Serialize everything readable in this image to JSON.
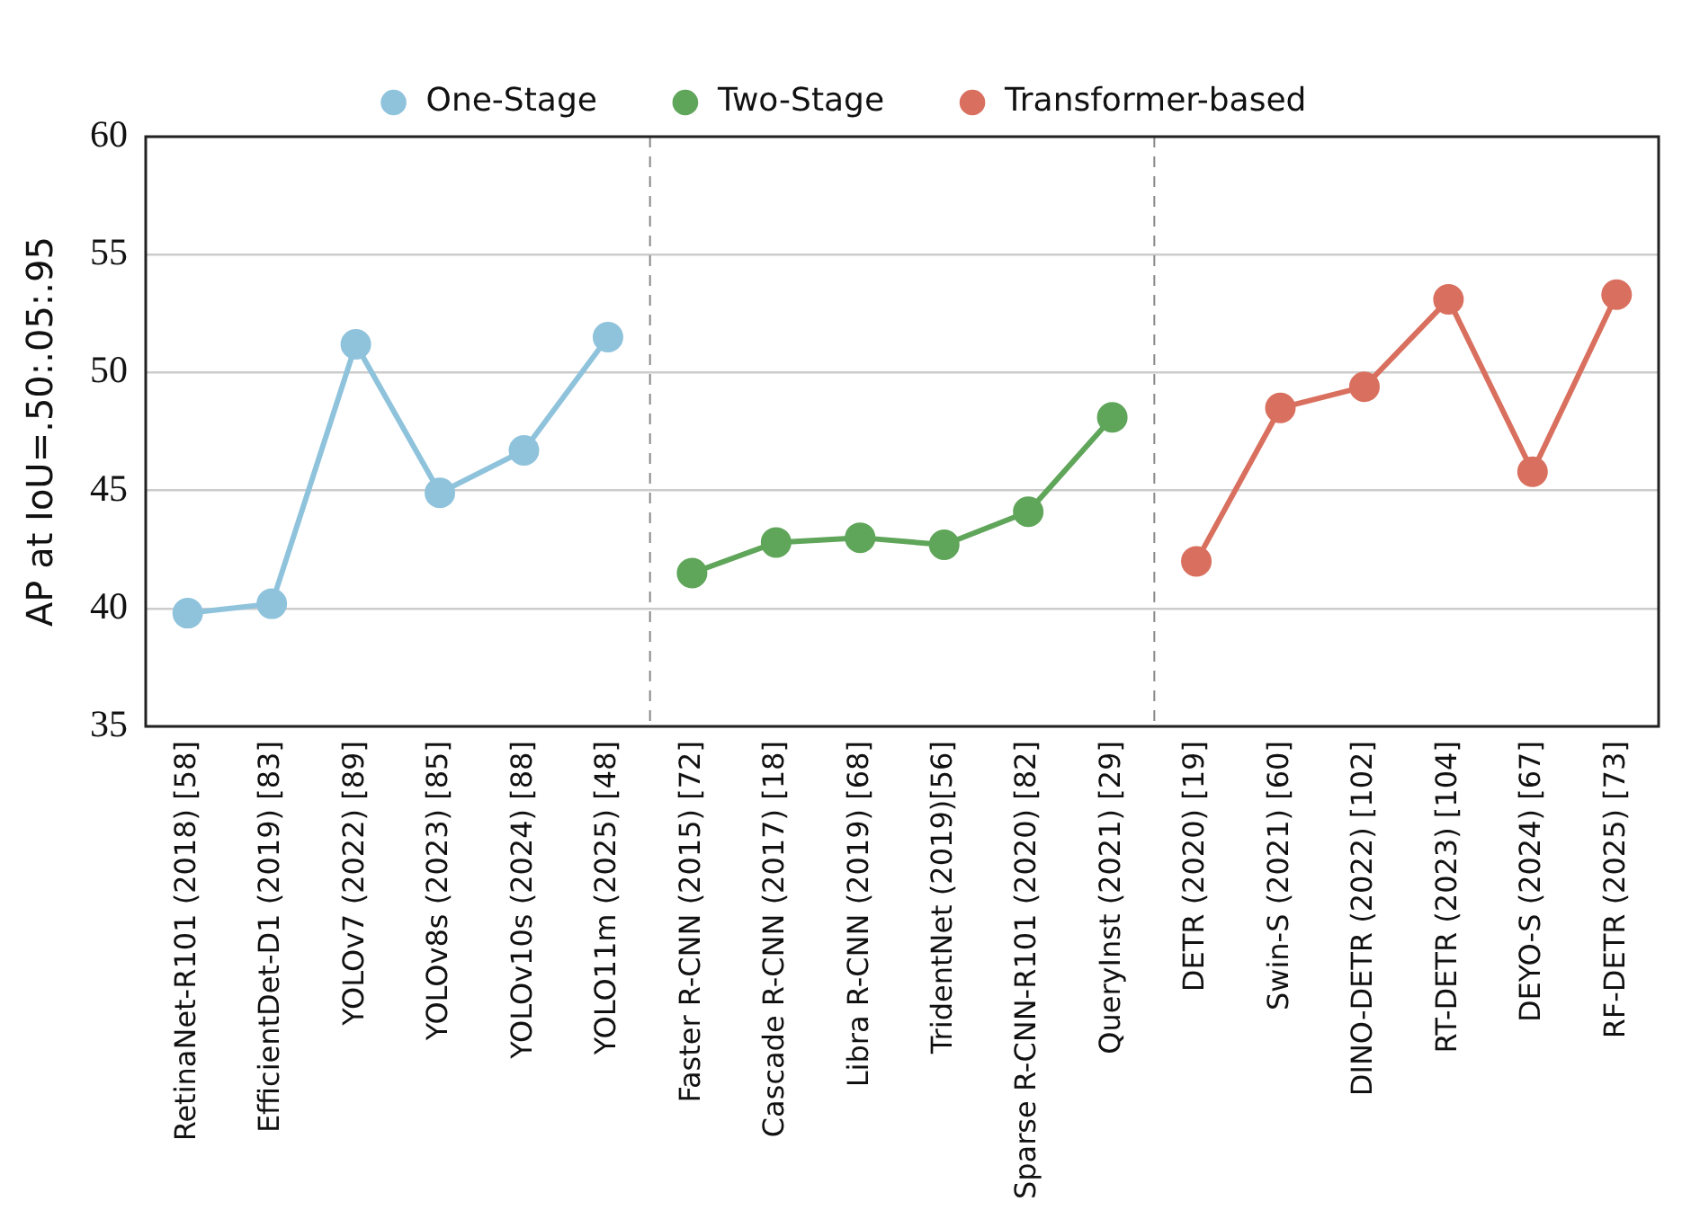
{
  "chart_data": {
    "type": "line",
    "ylabel": "AP at IoU=.50:.05:.95",
    "categories": [
      "RetinaNet-R101 (2018) [58]",
      "EfficientDet-D1 (2019) [83]",
      "YOLOv7 (2022) [89]",
      "YOLOv8s (2023) [85]",
      "YOLOv10s (2024) [88]",
      "YOLO11m (2025) [48]",
      "Faster R-CNN (2015) [72]",
      "Cascade R-CNN (2017) [18]",
      "Libra R-CNN (2019) [68]",
      "TridentNet (2019)[56]",
      "Sparse R-CNN-R101 (2020) [82]",
      "QueryInst (2021) [29]",
      "DETR (2020) [19]",
      "Swin-S (2021) [60]",
      "DINO-DETR (2022) [102]",
      "RT-DETR (2023) [104]",
      "DEYO-S (2024) [67]",
      "RF-DETR (2025) [73]"
    ],
    "series": [
      {
        "name": "One-Stage",
        "color": "#8fc3dc",
        "values": [
          39.8,
          40.2,
          51.2,
          44.9,
          46.7,
          51.5,
          null,
          null,
          null,
          null,
          null,
          null,
          null,
          null,
          null,
          null,
          null,
          null
        ]
      },
      {
        "name": "Two-Stage",
        "color": "#5fa55a",
        "values": [
          null,
          null,
          null,
          null,
          null,
          null,
          41.5,
          42.8,
          43.0,
          42.7,
          44.1,
          48.1,
          null,
          null,
          null,
          null,
          null,
          null
        ]
      },
      {
        "name": "Transformer-based",
        "color": "#d9705f",
        "values": [
          null,
          null,
          null,
          null,
          null,
          null,
          null,
          null,
          null,
          null,
          null,
          null,
          42.0,
          48.5,
          49.4,
          53.1,
          45.8,
          53.3
        ]
      }
    ],
    "ylim": [
      35,
      60
    ],
    "yticks": [
      35,
      40,
      45,
      50,
      55,
      60
    ],
    "grid": "y",
    "legend": "top",
    "marker": "circle",
    "line_style": "solid"
  }
}
